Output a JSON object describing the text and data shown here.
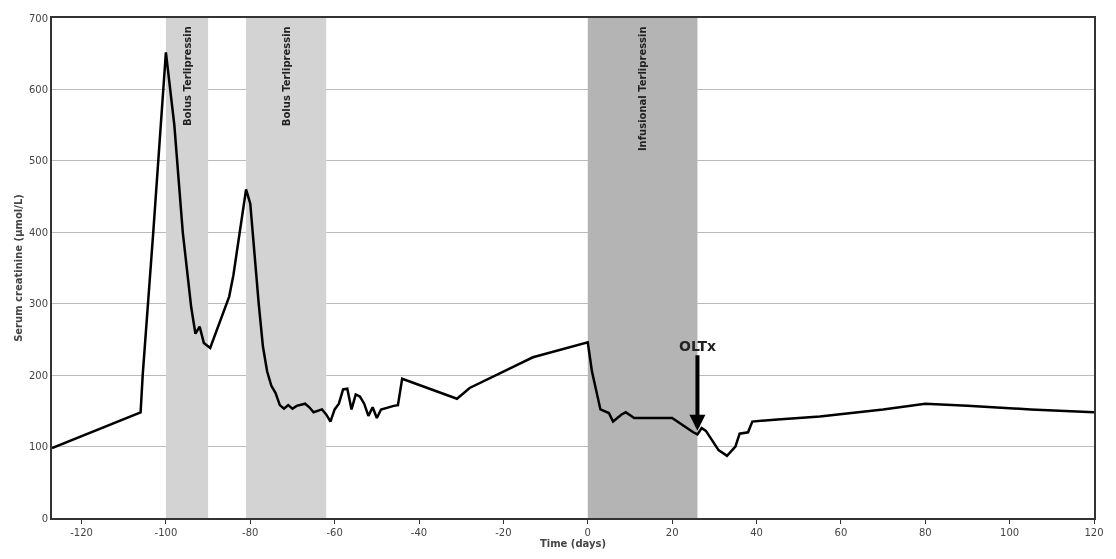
{
  "chart_data": {
    "type": "line",
    "xlabel": "Time (days)",
    "ylabel": "Serum creatinine (µmol/L)",
    "x": [
      -127,
      -106,
      -105.5,
      -103,
      -100,
      -98,
      -96,
      -94,
      -93,
      -92,
      -91,
      -89.5,
      -85,
      -84,
      -82,
      -81,
      -80,
      -78,
      -77,
      -76,
      -75,
      -74,
      -73,
      -72,
      -71,
      -70,
      -69,
      -67,
      -66,
      -65,
      -63,
      -62,
      -61,
      -60,
      -59,
      -58,
      -57,
      -56,
      -55,
      -54,
      -53,
      -52,
      -51,
      -50,
      -49,
      -46,
      -45,
      -44,
      -31,
      -28,
      -20,
      -13,
      0,
      1,
      3,
      5,
      6,
      8,
      9,
      11,
      20,
      25,
      26,
      27,
      28,
      31,
      33,
      35,
      36,
      38,
      39,
      45,
      55,
      70,
      80,
      90,
      105,
      120
    ],
    "series": [
      {
        "color": "#000000",
        "values": [
          98,
          148,
          200,
          400,
          652,
          550,
          400,
          295,
          258,
          268,
          245,
          238,
          310,
          340,
          420,
          460,
          440,
          300,
          240,
          205,
          185,
          175,
          158,
          153,
          158,
          153,
          157,
          160,
          155,
          148,
          152,
          145,
          135,
          152,
          160,
          180,
          181,
          152,
          173,
          170,
          160,
          143,
          155,
          140,
          152,
          157,
          158,
          195,
          167,
          182,
          205,
          225,
          246,
          205,
          152,
          147,
          135,
          145,
          148,
          140,
          140,
          120,
          117,
          126,
          122,
          95,
          87,
          100,
          118,
          120,
          135,
          138,
          142,
          152,
          160,
          157,
          152,
          148
        ]
      }
    ],
    "xlim": [
      -127,
      120
    ],
    "ylim": [
      0,
      700
    ],
    "xticks": [
      -120,
      -100,
      -80,
      -60,
      -40,
      -20,
      0,
      20,
      40,
      60,
      80,
      100,
      120
    ],
    "yticks": [
      0,
      100,
      200,
      300,
      400,
      500,
      600,
      700
    ],
    "grid": "y",
    "marker": "none",
    "line_style": "solid",
    "bands": [
      {
        "axis": "x",
        "from": -100,
        "to": -90,
        "label": "Bolus Terlipressin",
        "color": "#d3d3d3"
      },
      {
        "axis": "x",
        "from": -81,
        "to": -62,
        "label": "Bolus Terlipressin",
        "color": "#d3d3d3"
      },
      {
        "axis": "x",
        "from": 0,
        "to": 26,
        "label": "Infusional Terlipressin",
        "color": "#b4b4b4"
      }
    ],
    "annotations": [
      {
        "text": "OLTx",
        "x": 26,
        "y": 122
      }
    ]
  }
}
